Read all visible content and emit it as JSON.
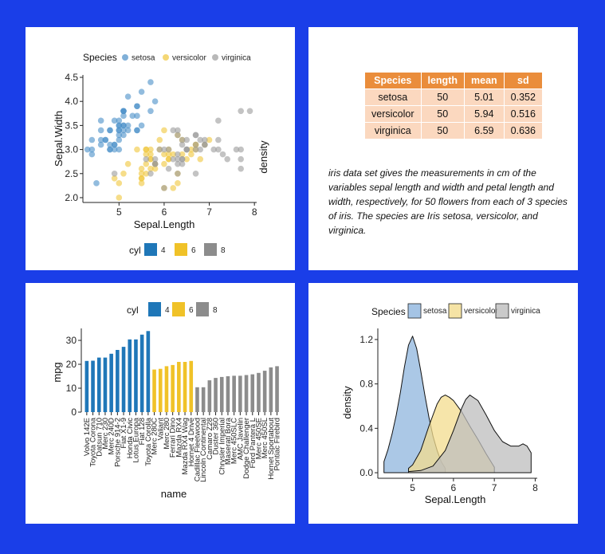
{
  "scatter": {
    "chart_data": {
      "type": "scatter",
      "xlabel": "Sepal.Length",
      "ylabel": "Sepal.Width",
      "xlim": [
        4.2,
        8.05
      ],
      "ylim": [
        1.9,
        4.55
      ],
      "xticks": [
        5,
        6,
        7,
        8
      ],
      "yticks": [
        2.0,
        2.5,
        3.0,
        3.5,
        4.0,
        4.5
      ],
      "legend_title": "Species",
      "legend_position": "top",
      "series": [
        {
          "name": "setosa",
          "color": "#4a8fc8",
          "points": [
            [
              5.1,
              3.5
            ],
            [
              4.9,
              3.0
            ],
            [
              4.7,
              3.2
            ],
            [
              4.6,
              3.1
            ],
            [
              5.0,
              3.6
            ],
            [
              5.4,
              3.9
            ],
            [
              4.6,
              3.4
            ],
            [
              5.0,
              3.4
            ],
            [
              4.4,
              2.9
            ],
            [
              4.9,
              3.1
            ],
            [
              5.4,
              3.7
            ],
            [
              4.8,
              3.4
            ],
            [
              4.8,
              3.0
            ],
            [
              4.3,
              3.0
            ],
            [
              5.8,
              4.0
            ],
            [
              5.7,
              4.4
            ],
            [
              5.4,
              3.9
            ],
            [
              5.1,
              3.5
            ],
            [
              5.7,
              3.8
            ],
            [
              5.1,
              3.8
            ],
            [
              5.4,
              3.4
            ],
            [
              5.1,
              3.7
            ],
            [
              4.6,
              3.6
            ],
            [
              5.1,
              3.3
            ],
            [
              4.8,
              3.4
            ],
            [
              5.0,
              3.0
            ],
            [
              5.0,
              3.4
            ],
            [
              5.2,
              3.5
            ],
            [
              5.2,
              3.4
            ],
            [
              4.7,
              3.2
            ],
            [
              4.8,
              3.1
            ],
            [
              5.4,
              3.4
            ],
            [
              5.2,
              4.1
            ],
            [
              5.5,
              4.2
            ],
            [
              4.9,
              3.1
            ],
            [
              5.0,
              3.2
            ],
            [
              5.5,
              3.5
            ],
            [
              4.9,
              3.6
            ],
            [
              4.4,
              3.0
            ],
            [
              5.1,
              3.4
            ],
            [
              5.0,
              3.5
            ],
            [
              4.5,
              2.3
            ],
            [
              4.4,
              3.2
            ],
            [
              5.0,
              3.5
            ],
            [
              5.1,
              3.8
            ],
            [
              4.8,
              3.0
            ],
            [
              5.1,
              3.8
            ],
            [
              4.6,
              3.2
            ],
            [
              5.3,
              3.7
            ],
            [
              5.0,
              3.3
            ]
          ]
        },
        {
          "name": "versicolor",
          "color": "#f0c63a",
          "points": [
            [
              7.0,
              3.2
            ],
            [
              6.4,
              3.2
            ],
            [
              6.9,
              3.1
            ],
            [
              5.5,
              2.3
            ],
            [
              6.5,
              2.8
            ],
            [
              5.7,
              2.8
            ],
            [
              6.3,
              3.3
            ],
            [
              4.9,
              2.4
            ],
            [
              6.6,
              2.9
            ],
            [
              5.2,
              2.7
            ],
            [
              5.0,
              2.0
            ],
            [
              5.9,
              3.0
            ],
            [
              6.0,
              2.2
            ],
            [
              6.1,
              2.9
            ],
            [
              5.6,
              2.9
            ],
            [
              6.7,
              3.1
            ],
            [
              5.6,
              3.0
            ],
            [
              5.8,
              2.7
            ],
            [
              6.2,
              2.2
            ],
            [
              5.6,
              2.5
            ],
            [
              5.9,
              3.2
            ],
            [
              6.1,
              2.8
            ],
            [
              6.3,
              2.5
            ],
            [
              6.1,
              2.8
            ],
            [
              6.4,
              2.9
            ],
            [
              6.6,
              3.0
            ],
            [
              6.8,
              2.8
            ],
            [
              6.7,
              3.0
            ],
            [
              6.0,
              2.9
            ],
            [
              5.7,
              2.6
            ],
            [
              5.5,
              2.4
            ],
            [
              5.5,
              2.4
            ],
            [
              5.8,
              2.7
            ],
            [
              6.0,
              2.7
            ],
            [
              5.4,
              3.0
            ],
            [
              6.0,
              3.4
            ],
            [
              6.7,
              3.1
            ],
            [
              6.3,
              2.3
            ],
            [
              5.6,
              3.0
            ],
            [
              5.5,
              2.5
            ],
            [
              5.5,
              2.6
            ],
            [
              6.1,
              3.0
            ],
            [
              5.8,
              2.6
            ],
            [
              5.0,
              2.3
            ],
            [
              5.6,
              2.7
            ],
            [
              5.7,
              3.0
            ],
            [
              5.7,
              2.9
            ],
            [
              6.2,
              2.9
            ],
            [
              5.1,
              2.5
            ],
            [
              5.7,
              2.8
            ]
          ]
        },
        {
          "name": "virginica",
          "color": "#9b9b9b",
          "points": [
            [
              6.3,
              3.3
            ],
            [
              5.8,
              2.7
            ],
            [
              7.1,
              3.0
            ],
            [
              6.3,
              2.9
            ],
            [
              6.5,
              3.0
            ],
            [
              7.6,
              3.0
            ],
            [
              4.9,
              2.5
            ],
            [
              7.3,
              2.9
            ],
            [
              6.7,
              2.5
            ],
            [
              7.2,
              3.6
            ],
            [
              6.5,
              3.2
            ],
            [
              6.4,
              2.7
            ],
            [
              6.8,
              3.0
            ],
            [
              5.7,
              2.5
            ],
            [
              5.8,
              2.8
            ],
            [
              6.4,
              3.2
            ],
            [
              6.5,
              3.0
            ],
            [
              7.7,
              3.8
            ],
            [
              7.7,
              2.6
            ],
            [
              6.0,
              2.2
            ],
            [
              6.9,
              3.2
            ],
            [
              5.6,
              2.8
            ],
            [
              7.7,
              2.8
            ],
            [
              6.3,
              2.7
            ],
            [
              6.7,
              3.3
            ],
            [
              7.2,
              3.2
            ],
            [
              6.2,
              2.8
            ],
            [
              6.1,
              3.0
            ],
            [
              6.4,
              2.8
            ],
            [
              7.2,
              3.0
            ],
            [
              7.4,
              2.8
            ],
            [
              7.9,
              3.8
            ],
            [
              6.4,
              2.8
            ],
            [
              6.3,
              2.8
            ],
            [
              6.1,
              2.6
            ],
            [
              7.7,
              3.0
            ],
            [
              6.3,
              3.4
            ],
            [
              6.4,
              3.1
            ],
            [
              6.0,
              3.0
            ],
            [
              6.9,
              3.1
            ],
            [
              6.7,
              3.1
            ],
            [
              6.9,
              3.1
            ],
            [
              5.8,
              2.7
            ],
            [
              6.8,
              3.2
            ],
            [
              6.7,
              3.3
            ],
            [
              6.7,
              3.0
            ],
            [
              6.3,
              2.5
            ],
            [
              6.5,
              3.0
            ],
            [
              6.2,
              3.4
            ],
            [
              5.9,
              3.0
            ]
          ]
        }
      ]
    },
    "extra_label": "density",
    "cyl_legend": {
      "title": "cyl",
      "items": [
        {
          "label": "4",
          "color": "#1f77b8"
        },
        {
          "label": "6",
          "color": "#f0c228"
        },
        {
          "label": "8",
          "color": "#8c8c8c"
        }
      ]
    }
  },
  "table": {
    "chart_data": {
      "type": "table",
      "columns": [
        "Species",
        "length",
        "mean",
        "sd"
      ],
      "rows": [
        [
          "setosa",
          "50",
          "5.01",
          "0.352"
        ],
        [
          "versicolor",
          "50",
          "5.94",
          "0.516"
        ],
        [
          "virginica",
          "50",
          "6.59",
          "0.636"
        ]
      ]
    },
    "description": "iris data set gives the measurements in cm of the variables sepal length and width and petal length and width, respectively, for 50 flowers from each of 3 species of iris. The species are Iris setosa, versicolor, and virginica."
  },
  "bar": {
    "chart_data": {
      "type": "bar",
      "xlabel": "name",
      "ylabel": "mpg",
      "ylim": [
        0,
        35
      ],
      "yticks": [
        0,
        10,
        20,
        30
      ],
      "legend_title": "cyl",
      "legend_position": "top",
      "legend": [
        {
          "label": "4",
          "color": "#1f77b8"
        },
        {
          "label": "6",
          "color": "#f0c228"
        },
        {
          "label": "8",
          "color": "#8c8c8c"
        }
      ],
      "categories": [
        "Volvo 142E",
        "Toyota Corona",
        "Datsun 710",
        "Merc 230",
        "Merc 240D",
        "Porsche 914-2",
        "Fiat X1-9",
        "Honda Civic",
        "Lotus Europa",
        "Fiat 128",
        "Toyota Corolla",
        "Merc 280C",
        "Valiant",
        "Merc 280",
        "Ferrari Dino",
        "Mazda RX4",
        "Mazda RX4 Wag",
        "Hornet 4 Drive",
        "Cadillac Fleetwood",
        "Lincoln Continental",
        "Camaro Z28",
        "Duster 360",
        "Chrysler Imperial",
        "Maserati Bora",
        "Merc 450SLC",
        "AMC Javelin",
        "Dodge Challenger",
        "Ford Pantera L",
        "Merc 450SE",
        "Merc 450SL",
        "Hornet Sportabout",
        "Pontiac Firebird"
      ],
      "values": [
        21.4,
        21.5,
        22.8,
        22.8,
        24.4,
        26.0,
        27.3,
        30.4,
        30.4,
        32.4,
        33.9,
        17.8,
        18.1,
        19.2,
        19.7,
        21.0,
        21.0,
        21.4,
        10.4,
        10.4,
        13.3,
        14.3,
        14.7,
        15.0,
        15.2,
        15.2,
        15.5,
        15.8,
        16.4,
        17.3,
        18.7,
        19.2
      ],
      "groups": [
        "4",
        "4",
        "4",
        "4",
        "4",
        "4",
        "4",
        "4",
        "4",
        "4",
        "4",
        "6",
        "6",
        "6",
        "6",
        "6",
        "6",
        "6",
        "8",
        "8",
        "8",
        "8",
        "8",
        "8",
        "8",
        "8",
        "8",
        "8",
        "8",
        "8",
        "8",
        "8"
      ]
    }
  },
  "density": {
    "chart_data": {
      "type": "area",
      "xlabel": "Sepal.Length",
      "ylabel": "density",
      "xlim": [
        4.15,
        8.05
      ],
      "ylim": [
        -0.05,
        1.3
      ],
      "xticks": [
        5,
        6,
        7,
        8
      ],
      "yticks": [
        0.0,
        0.4,
        0.8,
        1.2
      ],
      "legend_title": "Species",
      "legend_position": "top",
      "series": [
        {
          "name": "setosa",
          "color": "#8fb5de",
          "x": [
            4.3,
            4.4,
            4.5,
            4.6,
            4.7,
            4.8,
            4.9,
            5.0,
            5.1,
            5.2,
            5.3,
            5.4,
            5.5,
            5.6,
            5.7,
            5.8
          ],
          "y": [
            0.1,
            0.21,
            0.35,
            0.52,
            0.72,
            0.95,
            1.15,
            1.23,
            1.12,
            0.92,
            0.7,
            0.5,
            0.33,
            0.2,
            0.1,
            0.04
          ]
        },
        {
          "name": "versicolor",
          "color": "#f3dc8e",
          "x": [
            4.9,
            5.0,
            5.2,
            5.4,
            5.6,
            5.7,
            5.8,
            5.9,
            6.0,
            6.2,
            6.4,
            6.6,
            6.8,
            7.0
          ],
          "y": [
            0.04,
            0.07,
            0.2,
            0.42,
            0.62,
            0.68,
            0.7,
            0.68,
            0.65,
            0.55,
            0.42,
            0.3,
            0.17,
            0.05
          ]
        },
        {
          "name": "virginica",
          "color": "#bdbdbd",
          "x": [
            4.9,
            5.2,
            5.5,
            5.8,
            6.0,
            6.2,
            6.3,
            6.4,
            6.6,
            6.8,
            7.0,
            7.2,
            7.4,
            7.6,
            7.7,
            7.8,
            7.9
          ],
          "y": [
            0.01,
            0.02,
            0.06,
            0.2,
            0.38,
            0.58,
            0.66,
            0.7,
            0.65,
            0.52,
            0.38,
            0.28,
            0.24,
            0.24,
            0.26,
            0.24,
            0.18
          ]
        }
      ]
    }
  }
}
